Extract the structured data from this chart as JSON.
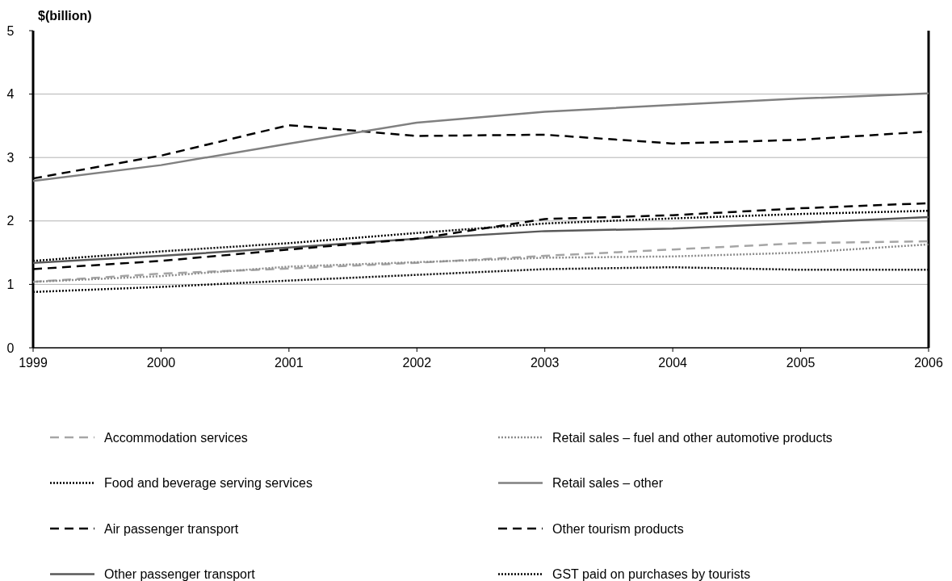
{
  "chart_data": {
    "type": "line",
    "ylabel": "$(billion)",
    "x": [
      1999,
      2000,
      2001,
      2002,
      2003,
      2004,
      2005,
      2006
    ],
    "xlim": [
      1999,
      2006
    ],
    "xticks": [
      1999,
      2000,
      2001,
      2002,
      2003,
      2004,
      2005,
      2006
    ],
    "ylim": [
      0,
      5
    ],
    "yticks": [
      0,
      1,
      2,
      3,
      4,
      5
    ],
    "grid": "y",
    "legend": "bottom",
    "marker": "none",
    "series": [
      {
        "name": "Accommodation services",
        "color": "#a6a6a6",
        "line_style": "dashed",
        "values": [
          1.04,
          1.17,
          1.25,
          1.34,
          1.45,
          1.55,
          1.65,
          1.68
        ]
      },
      {
        "name": "Food and beverage serving services",
        "color": "#000000",
        "line_style": "dotted",
        "values": [
          1.37,
          1.52,
          1.65,
          1.81,
          1.96,
          2.04,
          2.11,
          2.16
        ]
      },
      {
        "name": "Air passenger transport",
        "color": "#000000",
        "line_style": "dashed",
        "values": [
          2.67,
          3.03,
          3.51,
          3.34,
          3.36,
          3.22,
          3.28,
          3.41
        ]
      },
      {
        "name": "Other passenger transport",
        "color": "#595959",
        "line_style": "solid",
        "values": [
          1.34,
          1.45,
          1.58,
          1.72,
          1.84,
          1.88,
          1.97,
          2.06
        ]
      },
      {
        "name": "Retail sales – fuel and other automotive products",
        "color": "#8c8c8c",
        "line_style": "dotted",
        "values": [
          1.04,
          1.13,
          1.28,
          1.35,
          1.42,
          1.44,
          1.5,
          1.63
        ]
      },
      {
        "name": "Retail sales – other",
        "color": "#808080",
        "line_style": "solid",
        "values": [
          2.63,
          2.88,
          3.22,
          3.55,
          3.72,
          3.83,
          3.93,
          4.01
        ]
      },
      {
        "name": "Other tourism products",
        "color": "#000000",
        "line_style": "dashed",
        "values": [
          1.24,
          1.37,
          1.55,
          1.72,
          2.03,
          2.09,
          2.2,
          2.28
        ]
      },
      {
        "name": "GST paid on purchases by tourists",
        "color": "#000000",
        "line_style": "dotted",
        "values": [
          0.88,
          0.96,
          1.06,
          1.15,
          1.24,
          1.27,
          1.23,
          1.23
        ]
      }
    ]
  }
}
